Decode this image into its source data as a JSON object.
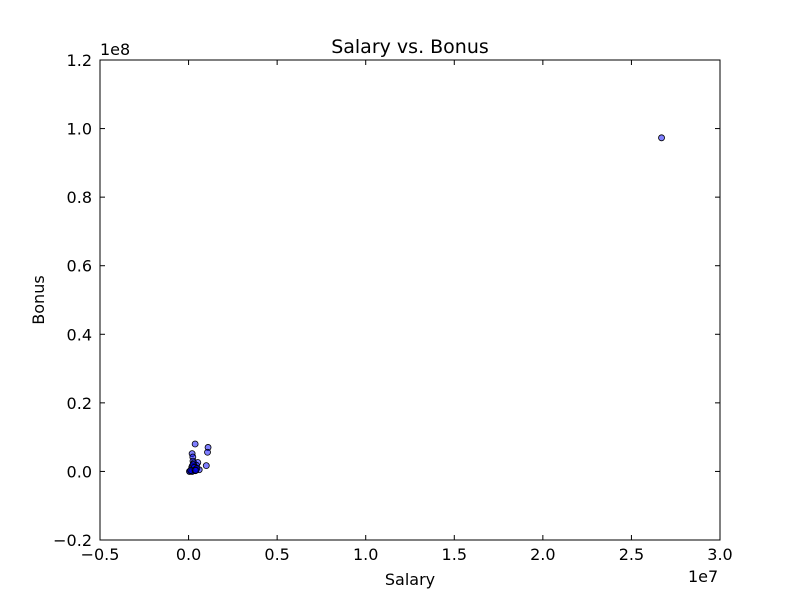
{
  "chart_data": {
    "type": "scatter",
    "title": "Salary vs. Bonus",
    "xlabel": "Salary",
    "ylabel": "Bonus",
    "xlim": [
      -5000000,
      30000000
    ],
    "ylim": [
      -20000000,
      120000000
    ],
    "x_ticks": [
      -5000000,
      0,
      5000000,
      10000000,
      15000000,
      20000000,
      25000000,
      30000000
    ],
    "x_tick_labels": [
      "−0.5",
      "0.0",
      "0.5",
      "1.0",
      "1.5",
      "2.0",
      "2.5",
      "3.0"
    ],
    "y_ticks": [
      -20000000,
      0,
      20000000,
      40000000,
      60000000,
      80000000,
      100000000,
      120000000
    ],
    "y_tick_labels": [
      "−0.2",
      "0.0",
      "0.2",
      "0.4",
      "0.6",
      "0.8",
      "1.0",
      "1.2"
    ],
    "x_offset_label": "1e7",
    "y_offset_label": "1e8",
    "grid": false,
    "marker_color": "#0000ff",
    "marker_opacity": 0.5,
    "points": [
      {
        "x": 26700000,
        "y": 97300000
      },
      {
        "x": 370000,
        "y": 8000000
      },
      {
        "x": 1100000,
        "y": 7000000
      },
      {
        "x": 1070000,
        "y": 5600000
      },
      {
        "x": 200000,
        "y": 5200000
      },
      {
        "x": 240000,
        "y": 4200000
      },
      {
        "x": 1000000,
        "y": 1700000
      },
      {
        "x": 250000,
        "y": 3000000
      },
      {
        "x": 300000,
        "y": 2500000
      },
      {
        "x": 520000,
        "y": 2600000
      },
      {
        "x": 450000,
        "y": 1800000
      },
      {
        "x": 330000,
        "y": 1500000
      },
      {
        "x": 600000,
        "y": 500000
      },
      {
        "x": 420000,
        "y": 1000000
      },
      {
        "x": 180000,
        "y": 1200000
      },
      {
        "x": 260000,
        "y": 800000
      },
      {
        "x": 350000,
        "y": 700000
      },
      {
        "x": 220000,
        "y": 400000
      },
      {
        "x": 150000,
        "y": 200000
      },
      {
        "x": 280000,
        "y": 300000
      },
      {
        "x": 380000,
        "y": 200000
      },
      {
        "x": 100000,
        "y": 50000
      },
      {
        "x": 50000,
        "y": 0
      },
      {
        "x": 180000,
        "y": 100000
      },
      {
        "x": 240000,
        "y": 600000
      },
      {
        "x": 300000,
        "y": 1000000
      },
      {
        "x": 210000,
        "y": 1600000
      },
      {
        "x": 260000,
        "y": 2000000
      },
      {
        "x": 320000,
        "y": 1200000
      },
      {
        "x": 470000,
        "y": 900000
      },
      {
        "x": 200000,
        "y": 0
      },
      {
        "x": 120000,
        "y": 300000
      },
      {
        "x": 360000,
        "y": 400000
      },
      {
        "x": 410000,
        "y": 300000
      }
    ]
  }
}
